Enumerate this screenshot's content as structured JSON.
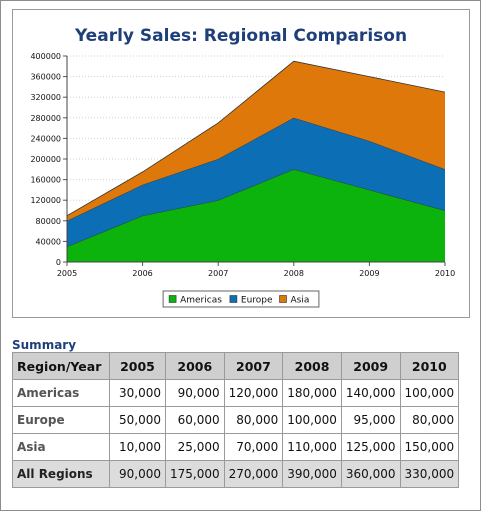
{
  "chart_data": {
    "type": "area",
    "stacked": true,
    "title": "Yearly Sales: Regional Comparison",
    "x": [
      "2005",
      "2006",
      "2007",
      "2008",
      "2009",
      "2010"
    ],
    "series": [
      {
        "name": "Americas",
        "values": [
          30000,
          90000,
          120000,
          180000,
          140000,
          100000
        ],
        "color": "#0db30d"
      },
      {
        "name": "Europe",
        "values": [
          50000,
          60000,
          80000,
          100000,
          95000,
          80000
        ],
        "color": "#0c6fb5"
      },
      {
        "name": "Asia",
        "values": [
          10000,
          25000,
          70000,
          110000,
          125000,
          150000
        ],
        "color": "#de780a"
      }
    ],
    "ylim": [
      0,
      400000
    ],
    "yticks": [
      "0",
      "40000",
      "80000",
      "120000",
      "160000",
      "200000",
      "240000",
      "280000",
      "320000",
      "360000",
      "400000"
    ],
    "grid": true,
    "legend_position": "bottom-center",
    "title_color": "#1f3f7a"
  },
  "summary": {
    "title": "Summary",
    "headers": [
      "Region/Year",
      "2005",
      "2006",
      "2007",
      "2008",
      "2009",
      "2010"
    ],
    "rows": [
      {
        "label": "Americas",
        "cells": [
          "30,000",
          "90,000",
          "120,000",
          "180,000",
          "140,000",
          "100,000"
        ]
      },
      {
        "label": "Europe",
        "cells": [
          "50,000",
          "60,000",
          "80,000",
          "100,000",
          "95,000",
          "80,000"
        ]
      },
      {
        "label": "Asia",
        "cells": [
          "10,000",
          "25,000",
          "70,000",
          "110,000",
          "125,000",
          "150,000"
        ]
      },
      {
        "label": "All Regions",
        "cells": [
          "90,000",
          "175,000",
          "270,000",
          "390,000",
          "360,000",
          "330,000"
        ]
      }
    ]
  }
}
